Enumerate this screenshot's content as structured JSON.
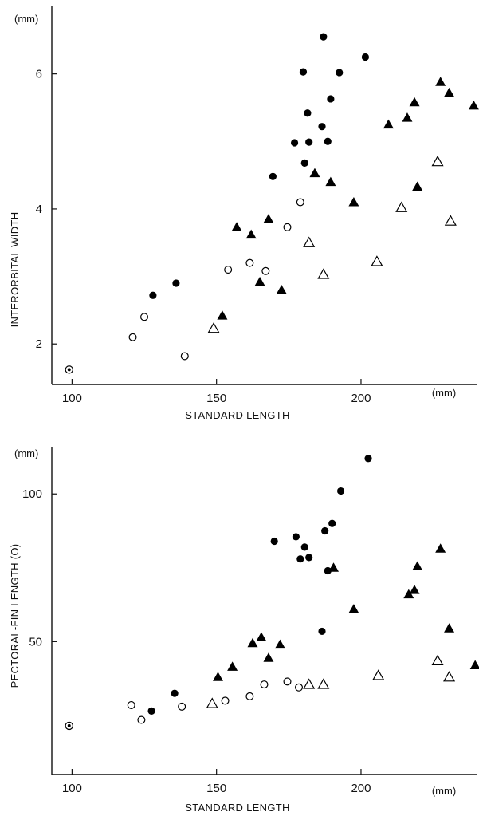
{
  "chart_data": [
    {
      "type": "scatter",
      "xlabel": "STANDARD LENGTH",
      "ylabel": "INTERORBITAL WIDTH",
      "x_unit": "(mm)",
      "y_unit": "(mm)",
      "xlim": [
        93,
        240
      ],
      "ylim": [
        1.4,
        7.0
      ],
      "x_ticks": [
        100,
        150,
        200
      ],
      "y_ticks": [
        2,
        4,
        6
      ],
      "grid": false,
      "series": [
        {
          "marker": "filled-circle",
          "points": [
            [
              128,
              2.72
            ],
            [
              136,
              2.9
            ],
            [
              169.5,
              4.48
            ],
            [
              177,
              4.98
            ],
            [
              180,
              6.03
            ],
            [
              180.5,
              4.68
            ],
            [
              181.5,
              5.42
            ],
            [
              182,
              4.99
            ],
            [
              186.5,
              5.22
            ],
            [
              187,
              6.55
            ],
            [
              188.5,
              5.0
            ],
            [
              189.5,
              5.63
            ],
            [
              192.5,
              6.02
            ],
            [
              201.5,
              6.25
            ]
          ]
        },
        {
          "marker": "open-circle",
          "points": [
            [
              121,
              2.1
            ],
            [
              125,
              2.4
            ],
            [
              139,
              1.82
            ],
            [
              154,
              3.1
            ],
            [
              161.5,
              3.2
            ],
            [
              167,
              3.08
            ],
            [
              174.5,
              3.73
            ],
            [
              179,
              4.1
            ]
          ]
        },
        {
          "marker": "filled-triangle",
          "points": [
            [
              152,
              2.42
            ],
            [
              157,
              3.73
            ],
            [
              162,
              3.62
            ],
            [
              165,
              2.92
            ],
            [
              168,
              3.85
            ],
            [
              172.5,
              2.8
            ],
            [
              184,
              4.53
            ],
            [
              189.5,
              4.4
            ],
            [
              197.5,
              4.1
            ],
            [
              209.5,
              5.25
            ],
            [
              216,
              5.35
            ],
            [
              218.5,
              5.58
            ],
            [
              219.5,
              4.33
            ],
            [
              227.5,
              5.88
            ],
            [
              230.5,
              5.72
            ],
            [
              239,
              5.53
            ]
          ]
        },
        {
          "marker": "open-triangle",
          "points": [
            [
              149,
              2.23
            ],
            [
              182,
              3.5
            ],
            [
              187,
              3.03
            ],
            [
              205.5,
              3.22
            ],
            [
              214,
              4.02
            ],
            [
              226.5,
              4.7
            ],
            [
              231,
              3.82
            ]
          ]
        },
        {
          "marker": "bullseye",
          "points": [
            [
              99,
              1.62
            ]
          ]
        }
      ]
    },
    {
      "type": "scatter",
      "xlabel": "STANDARD LENGTH",
      "ylabel": "PECTORAL-FIN LENGTH (O)",
      "x_unit": "(mm)",
      "y_unit": "(mm)",
      "xlim": [
        93,
        240
      ],
      "ylim": [
        5,
        116
      ],
      "x_ticks": [
        100,
        150,
        200
      ],
      "y_ticks": [
        50,
        100
      ],
      "grid": false,
      "series": [
        {
          "marker": "filled-circle",
          "points": [
            [
              127.5,
              26.5
            ],
            [
              135.5,
              32.5
            ],
            [
              170,
              84
            ],
            [
              177.5,
              85.5
            ],
            [
              179,
              78
            ],
            [
              180.5,
              82
            ],
            [
              182,
              78.5
            ],
            [
              186.5,
              53.5
            ],
            [
              187.5,
              87.5
            ],
            [
              188.5,
              74
            ],
            [
              190,
              90
            ],
            [
              193,
              101
            ],
            [
              202.5,
              112
            ]
          ]
        },
        {
          "marker": "open-circle",
          "points": [
            [
              120.5,
              28.5
            ],
            [
              124,
              23.5
            ],
            [
              138,
              28
            ],
            [
              153,
              30
            ],
            [
              161.5,
              31.5
            ],
            [
              166.5,
              35.5
            ],
            [
              174.5,
              36.5
            ],
            [
              178.5,
              34.5
            ]
          ]
        },
        {
          "marker": "filled-triangle",
          "points": [
            [
              150.5,
              38
            ],
            [
              155.5,
              41.5
            ],
            [
              162.5,
              49.5
            ],
            [
              165.5,
              51.5
            ],
            [
              168,
              44.5
            ],
            [
              172,
              49
            ],
            [
              190.5,
              75
            ],
            [
              197.5,
              61
            ],
            [
              216.5,
              66
            ],
            [
              218.5,
              67.5
            ],
            [
              219.5,
              75.5
            ],
            [
              227.5,
              81.5
            ],
            [
              230.5,
              54.5
            ],
            [
              239.5,
              42
            ]
          ]
        },
        {
          "marker": "open-triangle",
          "points": [
            [
              148.5,
              29
            ],
            [
              182,
              35.5
            ],
            [
              187,
              35.5
            ],
            [
              206,
              38.5
            ],
            [
              226.5,
              43.5
            ],
            [
              230.5,
              38
            ]
          ]
        },
        {
          "marker": "bullseye",
          "points": [
            [
              99,
              21.5
            ]
          ]
        }
      ]
    }
  ]
}
